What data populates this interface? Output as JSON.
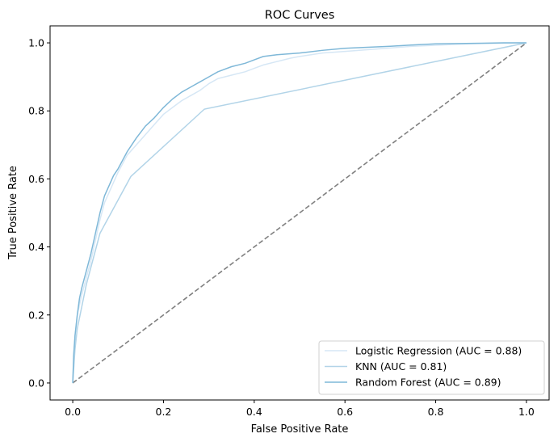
{
  "chart_data": {
    "type": "line",
    "title": "ROC Curves",
    "xlabel": "False Positive Rate",
    "ylabel": "True Positive Rate",
    "xlim": [
      -0.05,
      1.05
    ],
    "ylim": [
      -0.05,
      1.05
    ],
    "xticks": [
      0.0,
      0.2,
      0.4,
      0.6,
      0.8,
      1.0
    ],
    "xtick_labels": [
      "0.0",
      "0.2",
      "0.4",
      "0.6",
      "0.8",
      "1.0"
    ],
    "yticks": [
      0.0,
      0.2,
      0.4,
      0.6,
      0.8,
      1.0
    ],
    "ytick_labels": [
      "0.0",
      "0.2",
      "0.4",
      "0.6",
      "0.8",
      "1.0"
    ],
    "grid": false,
    "legend_position": "lower-right",
    "series": [
      {
        "name": "Logistic Regression (AUC = 0.88)",
        "color": "#d6e7f5",
        "points": [
          [
            0.0,
            0.0
          ],
          [
            0.003,
            0.1
          ],
          [
            0.006,
            0.15
          ],
          [
            0.01,
            0.2
          ],
          [
            0.02,
            0.26
          ],
          [
            0.03,
            0.31
          ],
          [
            0.04,
            0.36
          ],
          [
            0.05,
            0.42
          ],
          [
            0.06,
            0.48
          ],
          [
            0.07,
            0.53
          ],
          [
            0.08,
            0.56
          ],
          [
            0.09,
            0.59
          ],
          [
            0.1,
            0.62
          ],
          [
            0.11,
            0.645
          ],
          [
            0.12,
            0.67
          ],
          [
            0.14,
            0.7
          ],
          [
            0.16,
            0.73
          ],
          [
            0.18,
            0.76
          ],
          [
            0.2,
            0.79
          ],
          [
            0.22,
            0.81
          ],
          [
            0.24,
            0.83
          ],
          [
            0.26,
            0.845
          ],
          [
            0.28,
            0.86
          ],
          [
            0.3,
            0.88
          ],
          [
            0.32,
            0.895
          ],
          [
            0.35,
            0.905
          ],
          [
            0.38,
            0.915
          ],
          [
            0.4,
            0.925
          ],
          [
            0.42,
            0.935
          ],
          [
            0.45,
            0.945
          ],
          [
            0.48,
            0.955
          ],
          [
            0.5,
            0.96
          ],
          [
            0.55,
            0.97
          ],
          [
            0.6,
            0.975
          ],
          [
            0.65,
            0.98
          ],
          [
            0.7,
            0.985
          ],
          [
            0.75,
            0.99
          ],
          [
            0.8,
            0.993
          ],
          [
            0.85,
            0.996
          ],
          [
            0.9,
            0.998
          ],
          [
            0.95,
            0.999
          ],
          [
            1.0,
            1.0
          ]
        ]
      },
      {
        "name": "KNN (AUC = 0.81)",
        "color": "#b2d4e8",
        "points": [
          [
            0.0,
            0.0
          ],
          [
            0.005,
            0.1
          ],
          [
            0.01,
            0.16
          ],
          [
            0.03,
            0.29
          ],
          [
            0.06,
            0.44
          ],
          [
            0.128,
            0.607
          ],
          [
            0.29,
            0.805
          ],
          [
            1.0,
            1.0
          ]
        ]
      },
      {
        "name": "Random Forest (AUC = 0.89)",
        "color": "#7fb8d8",
        "points": [
          [
            0.0,
            0.0
          ],
          [
            0.002,
            0.08
          ],
          [
            0.005,
            0.14
          ],
          [
            0.01,
            0.2
          ],
          [
            0.015,
            0.25
          ],
          [
            0.02,
            0.28
          ],
          [
            0.03,
            0.33
          ],
          [
            0.04,
            0.38
          ],
          [
            0.05,
            0.44
          ],
          [
            0.06,
            0.5
          ],
          [
            0.07,
            0.55
          ],
          [
            0.08,
            0.58
          ],
          [
            0.09,
            0.61
          ],
          [
            0.1,
            0.63
          ],
          [
            0.11,
            0.655
          ],
          [
            0.12,
            0.68
          ],
          [
            0.13,
            0.7
          ],
          [
            0.14,
            0.72
          ],
          [
            0.16,
            0.755
          ],
          [
            0.18,
            0.78
          ],
          [
            0.2,
            0.81
          ],
          [
            0.22,
            0.835
          ],
          [
            0.24,
            0.855
          ],
          [
            0.26,
            0.87
          ],
          [
            0.28,
            0.885
          ],
          [
            0.3,
            0.9
          ],
          [
            0.32,
            0.915
          ],
          [
            0.35,
            0.93
          ],
          [
            0.38,
            0.94
          ],
          [
            0.4,
            0.95
          ],
          [
            0.42,
            0.96
          ],
          [
            0.45,
            0.965
          ],
          [
            0.5,
            0.97
          ],
          [
            0.55,
            0.978
          ],
          [
            0.6,
            0.984
          ],
          [
            0.65,
            0.987
          ],
          [
            0.7,
            0.99
          ],
          [
            0.75,
            0.994
          ],
          [
            0.8,
            0.997
          ],
          [
            0.85,
            0.998
          ],
          [
            0.9,
            0.999
          ],
          [
            0.95,
            1.0
          ],
          [
            1.0,
            1.0
          ]
        ]
      },
      {
        "name": "",
        "color": "#808080",
        "dashed": true,
        "points": [
          [
            0.0,
            0.0
          ],
          [
            1.0,
            1.0
          ]
        ]
      }
    ]
  }
}
